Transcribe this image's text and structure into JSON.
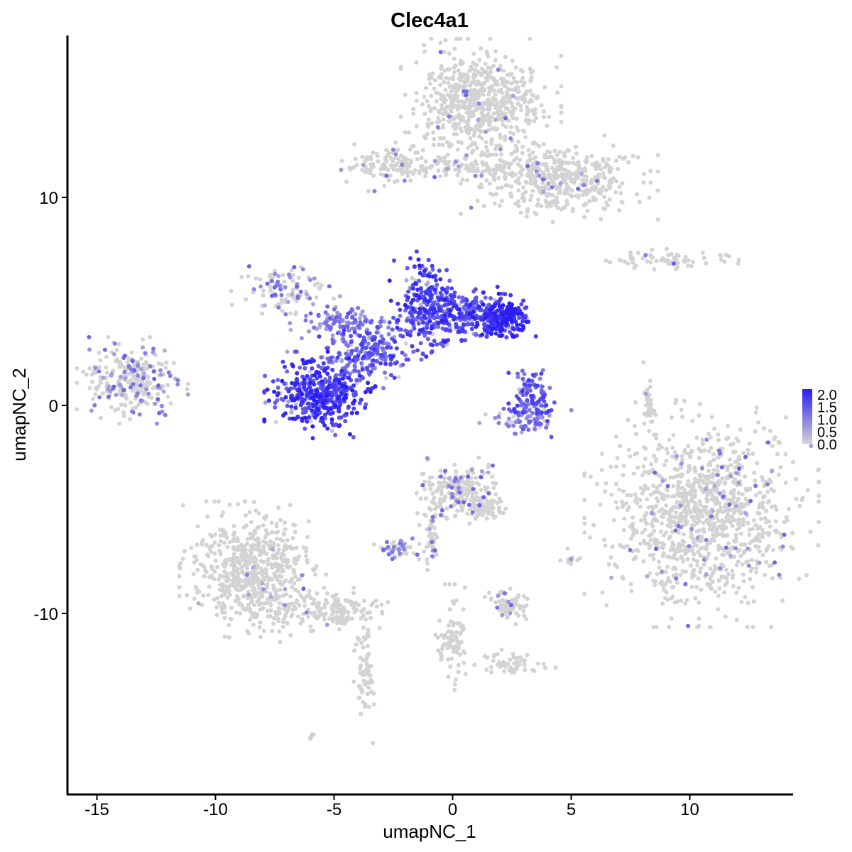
{
  "chart_data": {
    "type": "scatter",
    "title": "Clec4a1",
    "xlabel": "umapNC_1",
    "ylabel": "umapNC_2",
    "xlim": [
      -16.5,
      14.5
    ],
    "ylim": [
      -18.5,
      17.5
    ],
    "x_ticks": [
      -15,
      -10,
      -5,
      0,
      5,
      10
    ],
    "x_tick_labels": [
      "-15",
      "-10",
      "-5",
      "0",
      "5",
      "10"
    ],
    "y_ticks": [
      10,
      0,
      -10
    ],
    "y_tick_labels": [
      "10",
      "0",
      "-10"
    ],
    "grid": false,
    "legend": {
      "position": "right",
      "type": "colorbar",
      "min": 0.0,
      "max": 2.0,
      "labels": [
        "2.0",
        "1.5",
        "1.0",
        "0.5",
        "0.0"
      ],
      "low_color": "#d3d3d3",
      "high_color": "#2b1df5"
    },
    "clusters": [
      {
        "cx": 1.2,
        "cy": 14.5,
        "sx": 1.3,
        "sy": 1.2,
        "n": 650,
        "expr": 0.02
      },
      {
        "cx": 4.5,
        "cy": 10.9,
        "sx": 1.6,
        "sy": 0.8,
        "n": 420,
        "expr": 0.03
      },
      {
        "cx": 0.5,
        "cy": 11.4,
        "sx": 2.0,
        "sy": 0.25,
        "n": 130,
        "expr": 0.05
      },
      {
        "cx": -2.5,
        "cy": 11.6,
        "sx": 0.9,
        "sy": 0.5,
        "n": 110,
        "expr": 0.08
      },
      {
        "cx": 9.0,
        "cy": 7.0,
        "sx": 1.2,
        "sy": 0.2,
        "n": 70,
        "expr": 0.05
      },
      {
        "cx": -7.0,
        "cy": 5.5,
        "sx": 0.9,
        "sy": 0.6,
        "n": 110,
        "expr": 0.22
      },
      {
        "cx": -13.5,
        "cy": 1.2,
        "sx": 0.9,
        "sy": 0.8,
        "n": 270,
        "expr": 0.22
      },
      {
        "cx": -5.6,
        "cy": 0.5,
        "sx": 0.9,
        "sy": 0.8,
        "n": 430,
        "expr": 1.6
      },
      {
        "cx": -3.8,
        "cy": 2.6,
        "sx": 0.8,
        "sy": 0.8,
        "n": 230,
        "expr": 1.25
      },
      {
        "cx": -1.1,
        "cy": 4.8,
        "sx": 0.6,
        "sy": 1.0,
        "n": 280,
        "expr": 1.55
      },
      {
        "cx": 0.7,
        "cy": 4.4,
        "sx": 0.8,
        "sy": 0.5,
        "n": 190,
        "expr": 1.5
      },
      {
        "cx": 2.1,
        "cy": 4.2,
        "sx": 0.55,
        "sy": 0.45,
        "n": 210,
        "expr": 1.8
      },
      {
        "cx": -4.7,
        "cy": 4.0,
        "sx": 0.9,
        "sy": 0.3,
        "n": 90,
        "expr": 0.75
      },
      {
        "cx": 3.4,
        "cy": 0.3,
        "sx": 0.4,
        "sy": 0.7,
        "n": 110,
        "expr": 1.3
      },
      {
        "cx": 3.0,
        "cy": -0.6,
        "sx": 0.8,
        "sy": 0.35,
        "n": 70,
        "expr": 0.35
      },
      {
        "cx": 10.5,
        "cy": -5.2,
        "sx": 1.9,
        "sy": 2.1,
        "n": 1100,
        "expr": 0.03
      },
      {
        "cx": 8.3,
        "cy": 0.0,
        "sx": 0.15,
        "sy": 0.8,
        "n": 40,
        "expr": 0.03
      },
      {
        "cx": -8.4,
        "cy": -8.0,
        "sx": 1.2,
        "sy": 1.3,
        "n": 650,
        "expr": 0.01
      },
      {
        "cx": -5.0,
        "cy": -9.8,
        "sx": 0.9,
        "sy": 0.4,
        "n": 140,
        "expr": 0.01
      },
      {
        "cx": -3.7,
        "cy": -12.6,
        "sx": 0.18,
        "sy": 1.4,
        "n": 70,
        "expr": 0.0
      },
      {
        "cx": 0.3,
        "cy": -4.0,
        "sx": 0.7,
        "sy": 0.6,
        "n": 200,
        "expr": 0.15
      },
      {
        "cx": 1.2,
        "cy": -4.9,
        "sx": 0.4,
        "sy": 0.3,
        "n": 80,
        "expr": 0.05
      },
      {
        "cx": -0.9,
        "cy": -6.3,
        "sx": 0.2,
        "sy": 0.7,
        "n": 50,
        "expr": 0.05
      },
      {
        "cx": -2.4,
        "cy": -6.9,
        "sx": 0.35,
        "sy": 0.22,
        "n": 45,
        "expr": 0.35
      },
      {
        "cx": 2.4,
        "cy": -9.6,
        "sx": 0.4,
        "sy": 0.35,
        "n": 75,
        "expr": 0.12
      },
      {
        "cx": 0.0,
        "cy": -11.2,
        "sx": 0.3,
        "sy": 1.0,
        "n": 80,
        "expr": 0.0
      },
      {
        "cx": 2.3,
        "cy": -12.4,
        "sx": 0.8,
        "sy": 0.25,
        "n": 55,
        "expr": 0.0
      },
      {
        "cx": 5.0,
        "cy": -7.4,
        "sx": 0.2,
        "sy": 0.2,
        "n": 12,
        "expr": 0.15
      },
      {
        "cx": -6.0,
        "cy": -16.0,
        "sx": 0.1,
        "sy": 0.1,
        "n": 6,
        "expr": 0.0
      }
    ]
  }
}
